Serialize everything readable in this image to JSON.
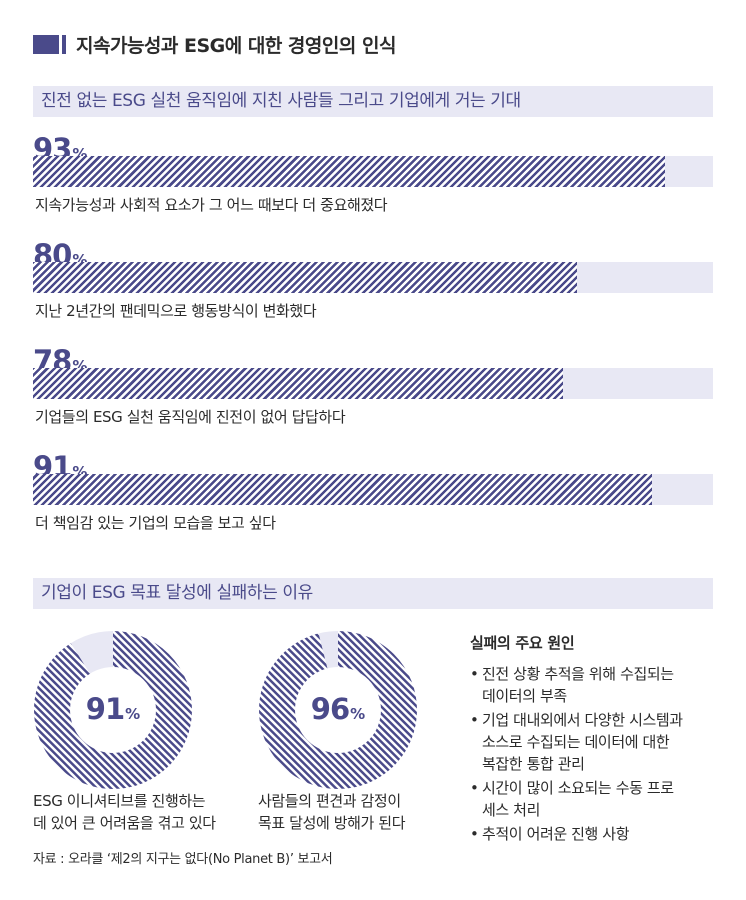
{
  "title": "지속가능성과 ESG에 대한 경영인의 인식",
  "colors": {
    "accent": "#4a4a8a",
    "band_bg": "#e8e8f4",
    "text": "#2b2b2b"
  },
  "section1": {
    "heading": "진전 없는 ESG 실천 움직임에 지친 사람들 그리고 기업에게 거는 기대"
  },
  "section2": {
    "heading": "기업이 ESG 목표 달성에 실패하는 이유"
  },
  "percent_sign": "%",
  "causes": {
    "heading": "실패의 주요 원인",
    "bullet": "•",
    "items": [
      {
        "lines": [
          "진전 상황 추적을 위해 수집되는",
          "데이터의 부족"
        ]
      },
      {
        "lines": [
          "기업 대내외에서 다양한 시스템과",
          "소스로 수집되는 데이터에 대한",
          "복잡한 통합 관리"
        ]
      },
      {
        "lines": [
          "시간이 많이 소요되는 수동 프로",
          "세스 처리"
        ]
      },
      {
        "lines": [
          "추적이 어려운 진행 사항"
        ]
      }
    ]
  },
  "source": "자료 : 오라클 ‘제2의 지구는 없다(No Planet B)’ 보고서",
  "chart_data": [
    {
      "type": "bar",
      "orientation": "horizontal",
      "categories": [
        "지속가능성과 사회적 요소가 그 어느 때보다 더 중요해졌다",
        "지난 2년간의 팬데믹으로 행동방식이 변화했다",
        "기업들의 ESG 실천 움직임에 진전이 없어 답답하다",
        "더 책임감 있는 기업의 모습을 보고 싶다"
      ],
      "values": [
        93,
        80,
        78,
        91
      ],
      "value_labels": [
        "93",
        "80",
        "78",
        "91"
      ],
      "unit": "%",
      "xlim": [
        0,
        100
      ],
      "grid": false
    },
    {
      "type": "pie",
      "style": "donut",
      "items": [
        {
          "value": 91,
          "value_label": "91",
          "label_lines": [
            "ESG 이니셔티브를 진행하는",
            "데 있어 큰 어려움을 겪고 있다"
          ]
        },
        {
          "value": 96,
          "value_label": "96",
          "label_lines": [
            "사람들의 편견과 감정이",
            "목표 달성에 방해가 된다"
          ]
        }
      ],
      "unit": "%"
    }
  ]
}
